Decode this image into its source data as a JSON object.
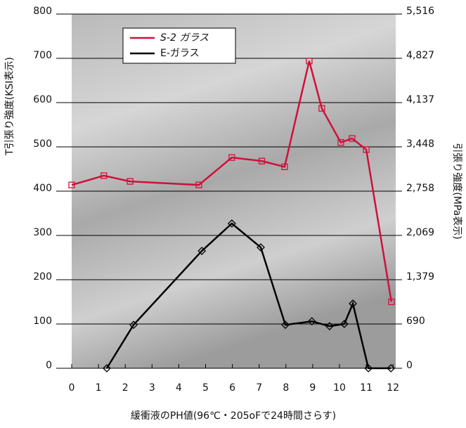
{
  "chart_data": {
    "type": "line",
    "x_label": "緩衝液のPH値(96℃・205oFで24時間さらす)",
    "y_label": "T引張り強度(KSI表示)",
    "y2_label": "引張り強度(MPa表示)",
    "xlim": [
      0,
      12.1
    ],
    "xticks": [
      0,
      1,
      2,
      3,
      4,
      5,
      6,
      7,
      8,
      9,
      10,
      11,
      12
    ],
    "ylim": [
      0,
      800
    ],
    "yticks": [
      0,
      100,
      200,
      300,
      400,
      500,
      600,
      700,
      800
    ],
    "y2lim": [
      0,
      5516
    ],
    "y2ticks": [
      0,
      690,
      {
        "value": 1379,
        "label": "1,379"
      },
      {
        "value": 2069,
        "label": "2,069"
      },
      {
        "value": 2758,
        "label": "2,758"
      },
      {
        "value": 3448,
        "label": "3,448"
      },
      {
        "value": 4137,
        "label": "4,137"
      },
      {
        "value": 4827,
        "label": "4,827"
      },
      {
        "value": 5516,
        "label": "5,516"
      }
    ],
    "grid": true,
    "legend": "upper left",
    "series": [
      {
        "name": "S-2 ガラス",
        "color": "#d0103a",
        "marker": "square",
        "x": [
          0,
          1.2,
          2.18,
          4.75,
          5.98,
          7.1,
          7.95,
          8.87,
          9.34,
          10.05,
          10.47,
          11.0,
          11.94
        ],
        "values": [
          414,
          435,
          422,
          414,
          476,
          468,
          455,
          694,
          587,
          510,
          519,
          494,
          150
        ]
      },
      {
        "name": "E-ガラス",
        "color": "#000000",
        "marker": "diamond",
        "x": [
          1.31,
          2.31,
          4.86,
          5.98,
          7.06,
          7.98,
          8.97,
          9.63,
          10.18,
          10.5,
          11.08,
          11.92
        ],
        "values": [
          0,
          98,
          265,
          327,
          273,
          98,
          106,
          95,
          100,
          146,
          0,
          0
        ]
      }
    ]
  }
}
